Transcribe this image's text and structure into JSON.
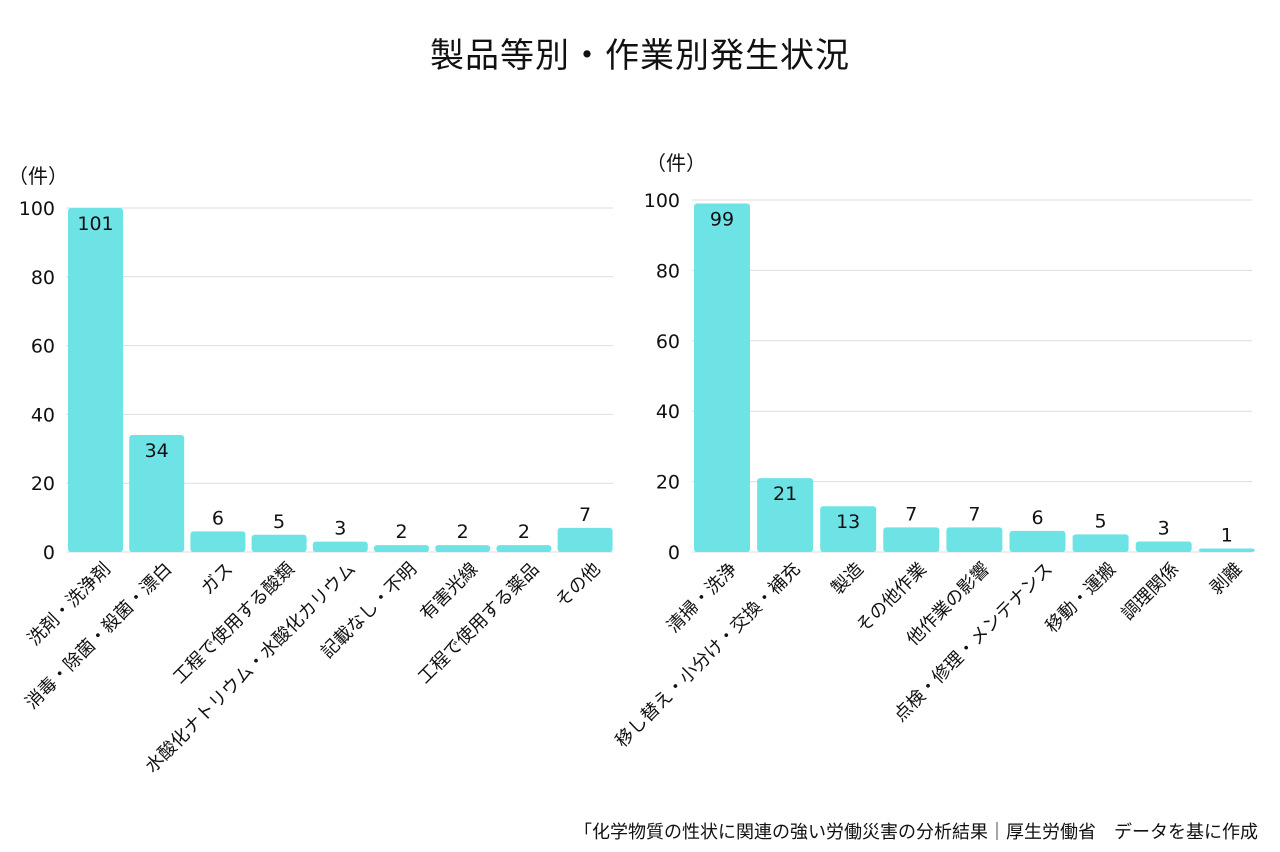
{
  "title": "製品等別・作業別発生状況",
  "source": "「化学物質の性状に関連の強い労働災害の分析結果｜厚生労働省　データを基に作成",
  "colors": {
    "bar": "#6ee3e6",
    "grid": "#dddddd",
    "text": "#111111"
  },
  "chart_data": [
    {
      "type": "bar",
      "title": "",
      "unit": "（件）",
      "ylabel": "（件）",
      "xlabel": "",
      "ylim": [
        0,
        100
      ],
      "yticks": [
        0,
        20,
        40,
        60,
        80,
        100
      ],
      "grid": true,
      "categories": [
        "洗剤・洗浄剤",
        "消毒・除菌・殺菌・漂白",
        "ガス",
        "工程で使用する酸類",
        "水酸化ナトリウム・水酸化カリウム",
        "記載なし・不明",
        "有害光線",
        "工程で使用する薬品",
        "その他"
      ],
      "values": [
        101,
        34,
        6,
        5,
        3,
        2,
        2,
        2,
        7
      ]
    },
    {
      "type": "bar",
      "title": "",
      "unit": "（件）",
      "ylabel": "（件）",
      "xlabel": "",
      "ylim": [
        0,
        100
      ],
      "yticks": [
        0,
        20,
        40,
        60,
        80,
        100
      ],
      "grid": true,
      "categories": [
        "清掃・洗浄",
        "移し替え・小分け・交換・補充",
        "製造",
        "その他作業",
        "他作業の影響",
        "点検・修理・メンテナンス",
        "移動・運搬",
        "調理関係",
        "剥離"
      ],
      "values": [
        99,
        21,
        13,
        7,
        7,
        6,
        5,
        3,
        1
      ]
    }
  ]
}
